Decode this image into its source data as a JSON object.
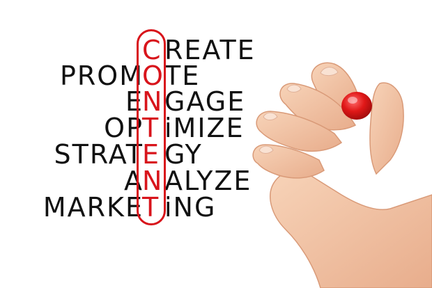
{
  "words": [
    {
      "prefix": "",
      "key": "C",
      "suffix": "REATE"
    },
    {
      "prefix": "PROM",
      "key": "O",
      "suffix": "TE"
    },
    {
      "prefix": "E",
      "key": "N",
      "suffix": "GAGE"
    },
    {
      "prefix": "OP",
      "key": "T",
      "suffix": "iMIZE"
    },
    {
      "prefix": "STRAT",
      "key": "E",
      "suffix": "GY"
    },
    {
      "prefix": "A",
      "key": "N",
      "suffix": "ALYZE"
    },
    {
      "prefix": "MARKE",
      "key": "T",
      "suffix": "iNG"
    }
  ],
  "colors": {
    "ink": "#111111",
    "marker_red": "#d8141b",
    "skin": "#f3c7a8",
    "background": "#ffffff"
  },
  "icons": {
    "marker": "red-marker-cap",
    "hand": "hand-holding-marker"
  }
}
